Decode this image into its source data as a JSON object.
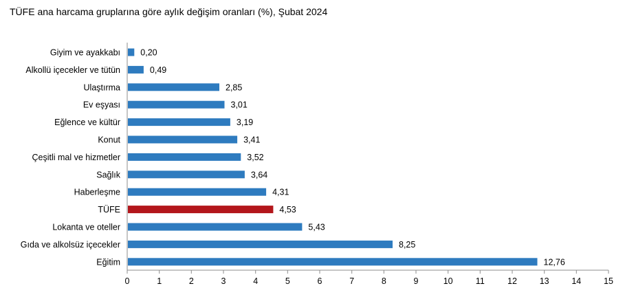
{
  "title": "TÜFE ana harcama gruplarına göre aylık değişim oranları (%), Şubat 2024",
  "chart_data": {
    "type": "bar",
    "orientation": "horizontal",
    "title": "TÜFE ana harcama gruplarına göre aylık değişim oranları (%), Şubat 2024",
    "xlabel": "",
    "ylabel": "",
    "xlim": [
      0,
      15
    ],
    "xticks": [
      "0",
      "1",
      "2",
      "3",
      "4",
      "5",
      "6",
      "7",
      "8",
      "9",
      "10",
      "11",
      "12",
      "13",
      "14",
      "15"
    ],
    "grid": false,
    "legend": "none",
    "bar_color": "#2e7bbf",
    "highlight_color": "#b3161b",
    "categories": [
      "Giyim ve ayakkabı",
      "Alkollü içecekler ve tütün",
      "Ulaştırma",
      "Ev eşyası",
      "Eğlence ve kültür",
      "Konut",
      "Çeşitli mal ve hizmetler",
      "Sağlık",
      "Haberleşme",
      "TÜFE",
      "Lokanta ve oteller",
      "Gıda ve alkolsüz içecekler",
      "Eğitim"
    ],
    "values": [
      0.2,
      0.49,
      2.85,
      3.01,
      3.19,
      3.41,
      3.52,
      3.64,
      4.31,
      4.53,
      5.43,
      8.25,
      12.76
    ],
    "value_labels": [
      "0,20",
      "0,49",
      "2,85",
      "3,01",
      "3,19",
      "3,41",
      "3,52",
      "3,64",
      "4,31",
      "4,53",
      "5,43",
      "8,25",
      "12,76"
    ],
    "highlight_category": "TÜFE"
  }
}
